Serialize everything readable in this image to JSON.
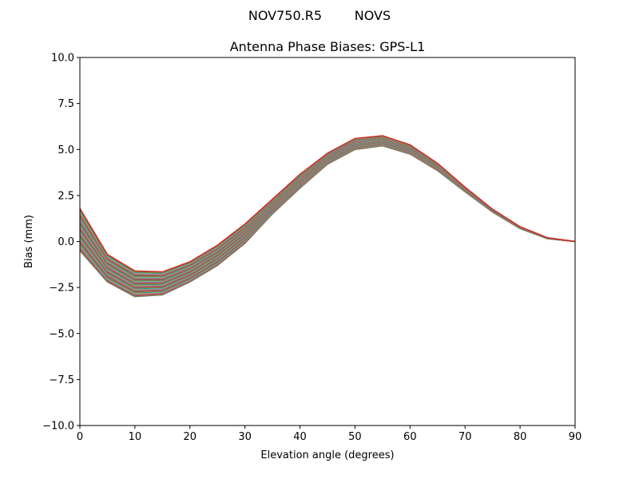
{
  "suptitle": "NOV750.R5        NOVS",
  "chart_data": {
    "type": "line",
    "title": "Antenna Phase Biases: GPS-L1",
    "xlabel": "Elevation angle (degrees)",
    "ylabel": "Bias (mm)",
    "xlim": [
      0,
      90
    ],
    "ylim": [
      -10,
      10
    ],
    "grid": false,
    "xticks": [
      "0",
      "10",
      "20",
      "30",
      "40",
      "50",
      "60",
      "70",
      "80",
      "90"
    ],
    "yticks": [
      "−10.0",
      "−7.5",
      "−5.0",
      "−2.5",
      "0.0",
      "2.5",
      "5.0",
      "7.5",
      "10.0"
    ],
    "x": [
      0,
      5,
      10,
      15,
      20,
      25,
      30,
      35,
      40,
      45,
      50,
      55,
      60,
      65,
      70,
      75,
      80,
      85,
      90
    ],
    "colors": [
      "#1f77b4",
      "#ff7f0e",
      "#2ca02c",
      "#d62728",
      "#9467bd",
      "#8c564b",
      "#e377c2",
      "#7f7f7f",
      "#bcbd22",
      "#17becf"
    ],
    "series": [
      {
        "values": [
          -0.5,
          -2.2,
          -3.0,
          -2.9,
          -2.2,
          -1.3,
          -0.1,
          1.5,
          2.9,
          4.2,
          5.0,
          5.2,
          4.75,
          3.85,
          2.7,
          1.6,
          0.7,
          0.15,
          0
        ]
      },
      {
        "values": [
          -0.18,
          -1.99,
          -2.8,
          -2.72,
          -2.05,
          -1.15,
          0.05,
          1.61,
          3.0,
          4.28,
          5.08,
          5.28,
          4.82,
          3.91,
          2.74,
          1.62,
          0.71,
          0.16,
          0
        ]
      },
      {
        "values": [
          0.17,
          -1.76,
          -2.59,
          -2.54,
          -1.88,
          -0.98,
          0.2,
          1.73,
          3.12,
          4.37,
          5.17,
          5.36,
          4.9,
          3.97,
          2.77,
          1.64,
          0.73,
          0.16,
          0
        ]
      },
      {
        "values": [
          0.49,
          -1.55,
          -2.4,
          -2.36,
          -1.73,
          -0.83,
          0.35,
          1.84,
          3.22,
          4.46,
          5.26,
          5.44,
          4.97,
          4.02,
          2.81,
          1.66,
          0.74,
          0.17,
          0
        ]
      },
      {
        "values": [
          0.81,
          -1.34,
          -2.2,
          -2.19,
          -1.57,
          -0.67,
          0.5,
          1.96,
          3.33,
          4.54,
          5.34,
          5.51,
          5.04,
          4.08,
          2.84,
          1.69,
          0.76,
          0.18,
          0
        ]
      },
      {
        "values": [
          1.13,
          -1.13,
          -2.01,
          -2.01,
          -1.42,
          -0.52,
          0.65,
          2.07,
          3.43,
          4.63,
          5.43,
          5.59,
          5.11,
          4.13,
          2.88,
          1.71,
          0.77,
          0.19,
          0
        ]
      },
      {
        "values": [
          1.48,
          -0.91,
          -1.8,
          -1.82,
          -1.25,
          -0.35,
          0.8,
          2.19,
          3.55,
          4.72,
          5.52,
          5.67,
          5.18,
          4.19,
          2.92,
          1.73,
          0.79,
          0.19,
          0
        ]
      },
      {
        "values": [
          1.8,
          -0.7,
          -1.6,
          -1.65,
          -1.1,
          -0.2,
          0.95,
          2.3,
          3.65,
          4.8,
          5.6,
          5.75,
          5.25,
          4.25,
          2.95,
          1.75,
          0.8,
          0.2,
          0
        ]
      }
    ]
  }
}
